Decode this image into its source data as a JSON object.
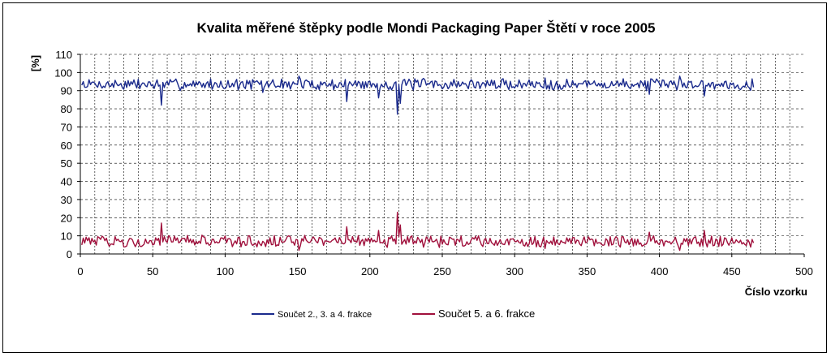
{
  "chart_data": {
    "type": "line",
    "title": "Kvalita měřené štěpky podle Mondi Packaging Paper Štětí v roce 2005",
    "xlabel": "Číslo vzorku",
    "ylabel": "[%]",
    "xlim": [
      0,
      500
    ],
    "ylim": [
      0,
      110
    ],
    "xticks": [
      0,
      50,
      100,
      150,
      200,
      250,
      300,
      350,
      400,
      450,
      500
    ],
    "yticks": [
      0,
      10,
      20,
      30,
      40,
      50,
      60,
      70,
      80,
      90,
      100,
      110
    ],
    "grid": true,
    "grid_style": "dashed",
    "legend_position": "bottom",
    "n_points": 465,
    "series": [
      {
        "name": "Součet 2., 3. a 4. frakce",
        "color": "#1a2a8c",
        "baseline": 93.5,
        "noise": 2.6,
        "features": [
          [
            55,
            82
          ],
          [
            125,
            89
          ],
          [
            150,
            98
          ],
          [
            183,
            84
          ],
          [
            205,
            86
          ],
          [
            218,
            77
          ],
          [
            220,
            83
          ],
          [
            235,
            96
          ],
          [
            320,
            97
          ],
          [
            392,
            88
          ],
          [
            413,
            98
          ],
          [
            430,
            87
          ]
        ]
      },
      {
        "name": "Součet 5. a 6. frakce",
        "color": "#a0103c",
        "baseline": 7,
        "noise": 2.6,
        "features": [
          [
            55,
            17
          ],
          [
            150,
            2
          ],
          [
            183,
            15
          ],
          [
            205,
            13
          ],
          [
            218,
            23
          ],
          [
            220,
            16
          ],
          [
            320,
            3
          ],
          [
            392,
            12
          ],
          [
            413,
            2
          ],
          [
            430,
            13
          ]
        ]
      }
    ]
  }
}
